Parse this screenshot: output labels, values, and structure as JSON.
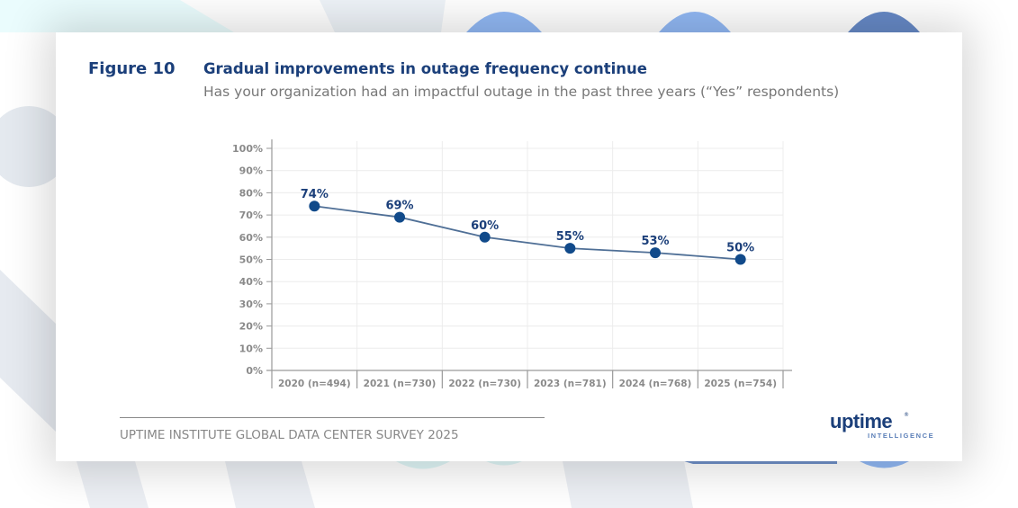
{
  "figure": {
    "label": "Figure 10",
    "title": "Gradual improvements in outage frequency continue",
    "subtitle": "Has your organization had an impactful outage in the past three years (“Yes” respondents)"
  },
  "footer": {
    "source": "UPTIME INSTITUTE GLOBAL DATA CENTER SURVEY 2025"
  },
  "logo": {
    "word": "uptime",
    "sub": "INTELLIGENCE",
    "mark": "®"
  },
  "colors": {
    "brand": "#1b3f7a",
    "line": "#4f6f96",
    "point": "#114a8a",
    "grid": "#ececec",
    "axis": "#9a9a9a",
    "tick_text": "#8a8a8a"
  },
  "chart_data": {
    "type": "line",
    "title": "Gradual improvements in outage frequency continue",
    "subtitle": "Has your organization had an impactful outage in the past three years (“Yes” respondents)",
    "xlabel": "",
    "ylabel": "",
    "categories": [
      "2020 (n=494)",
      "2021 (n=730)",
      "2022 (n=730)",
      "2023 (n=781)",
      "2024 (n=768)",
      "2025 (n=754)"
    ],
    "series": [
      {
        "name": "Yes respondents",
        "values": [
          74,
          69,
          60,
          55,
          53,
          50
        ]
      }
    ],
    "data_labels": [
      "74%",
      "69%",
      "60%",
      "55%",
      "53%",
      "50%"
    ],
    "yticks": [
      "0%",
      "10%",
      "20%",
      "30%",
      "40%",
      "50%",
      "60%",
      "70%",
      "80%",
      "90%",
      "100%"
    ],
    "ylim": [
      0,
      100
    ],
    "grid": true,
    "legend": "none"
  }
}
